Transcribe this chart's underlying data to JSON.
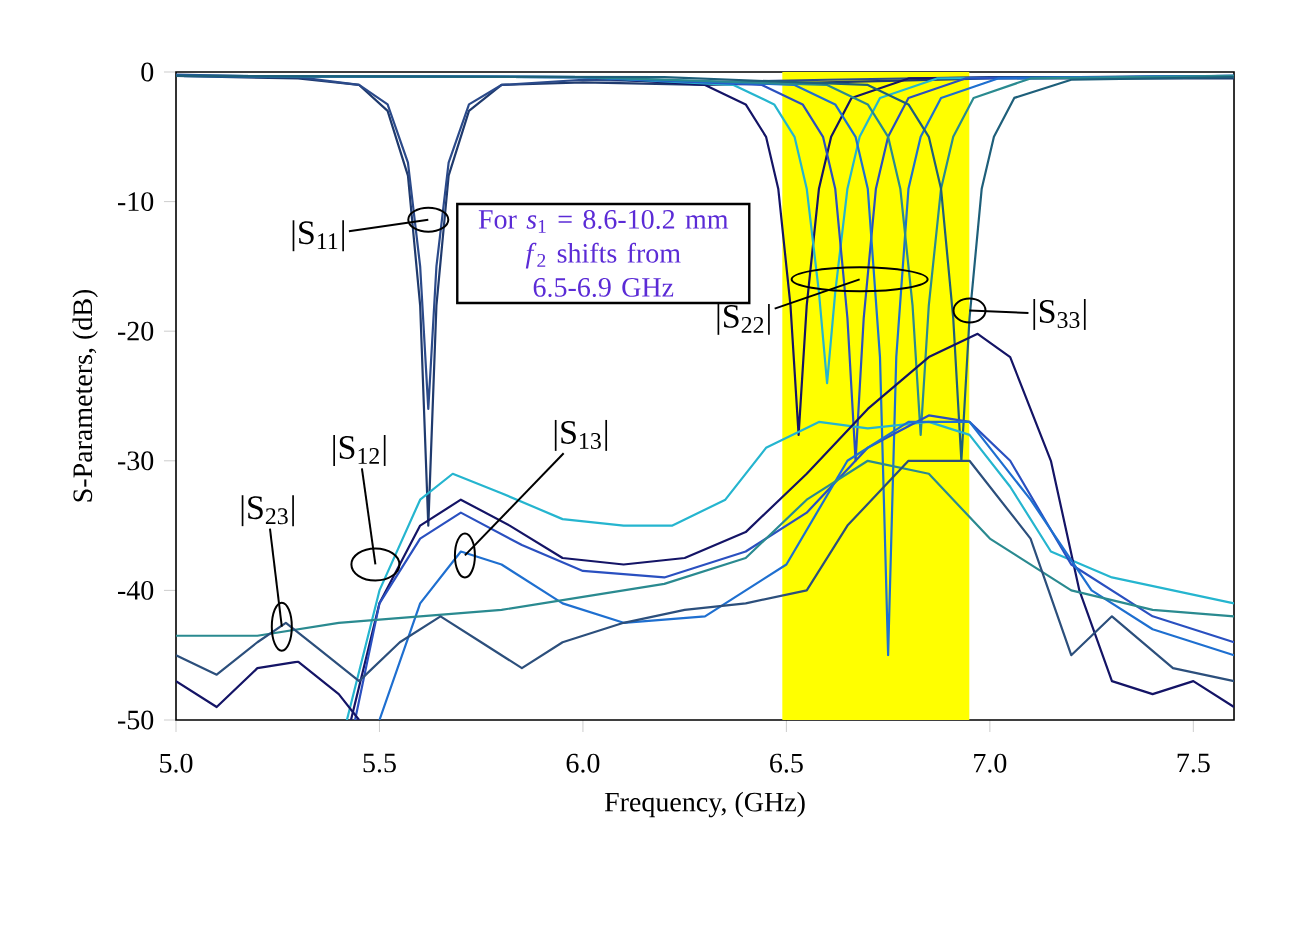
{
  "chart_data": {
    "type": "line",
    "xlabel": "Frequency, (GHz)",
    "ylabel": "S-Parameters, (dB)",
    "xlim": [
      5.0,
      7.6
    ],
    "ylim": [
      -50,
      0
    ],
    "xticks": [
      {
        "value": 5.0,
        "label": "5.0"
      },
      {
        "value": 5.5,
        "label": "5.5"
      },
      {
        "value": 6.0,
        "label": "6.0"
      },
      {
        "value": 6.5,
        "label": "6.5"
      },
      {
        "value": 7.0,
        "label": "7.0"
      },
      {
        "value": 7.5,
        "label": "7.5"
      }
    ],
    "yticks": [
      -50,
      -40,
      -30,
      -20,
      -10,
      0
    ],
    "line_style": "solid",
    "marker": "none",
    "bands": [
      {
        "axis": "x",
        "from": 6.49,
        "to": 6.95,
        "color": "#ffff00"
      }
    ],
    "series": [
      {
        "color": "#1f3a6e",
        "x": [
          5.0,
          5.3,
          5.45,
          5.52,
          5.57,
          5.6,
          5.62,
          5.64,
          5.67,
          5.72,
          5.8,
          6.0,
          6.3,
          6.6,
          7.0,
          7.6
        ],
        "values": [
          -0.3,
          -0.5,
          -1,
          -3,
          -8,
          -18,
          -35,
          -18,
          -8,
          -3,
          -1,
          -0.8,
          -1,
          -0.8,
          -0.5,
          -0.5
        ]
      },
      {
        "color": "#2b4a8a",
        "x": [
          5.0,
          5.3,
          5.45,
          5.52,
          5.57,
          5.6,
          5.62,
          5.64,
          5.67,
          5.72,
          5.8,
          6.0,
          6.3,
          6.6,
          7.0,
          7.6
        ],
        "values": [
          -0.2,
          -0.4,
          -1,
          -2.5,
          -7,
          -15,
          -26,
          -15,
          -7,
          -2.5,
          -1,
          -0.6,
          -0.8,
          -0.6,
          -0.4,
          -0.4
        ]
      },
      {
        "color": "#141466",
        "x": [
          5.0,
          6.0,
          6.3,
          6.4,
          6.45,
          6.48,
          6.51,
          6.53,
          6.55,
          6.58,
          6.61,
          6.66,
          6.8,
          7.6
        ],
        "values": [
          -0.3,
          -0.4,
          -1,
          -2.5,
          -5,
          -9,
          -18,
          -28,
          -18,
          -9,
          -5,
          -2,
          -0.5,
          -0.3
        ]
      },
      {
        "color": "#25b5cf",
        "x": [
          5.0,
          6.0,
          6.37,
          6.47,
          6.52,
          6.55,
          6.58,
          6.6,
          6.62,
          6.65,
          6.68,
          6.73,
          6.87,
          7.6
        ],
        "values": [
          -0.3,
          -0.4,
          -1,
          -2.5,
          -5,
          -9,
          -17,
          -24,
          -17,
          -9,
          -5,
          -2,
          -0.5,
          -0.3
        ]
      },
      {
        "color": "#2a50c0",
        "x": [
          5.0,
          6.0,
          6.44,
          6.54,
          6.59,
          6.62,
          6.65,
          6.67,
          6.69,
          6.72,
          6.75,
          6.8,
          6.94,
          7.6
        ],
        "values": [
          -0.3,
          -0.4,
          -1,
          -2.5,
          -5,
          -9,
          -19,
          -30,
          -19,
          -9,
          -5,
          -2,
          -0.5,
          -0.3
        ]
      },
      {
        "color": "#1e6fd0",
        "x": [
          5.0,
          6.0,
          6.52,
          6.62,
          6.67,
          6.7,
          6.73,
          6.75,
          6.77,
          6.8,
          6.83,
          6.88,
          7.02,
          7.6
        ],
        "values": [
          -0.3,
          -0.4,
          -1,
          -2.5,
          -5,
          -9,
          -22,
          -45,
          -22,
          -9,
          -5,
          -2,
          -0.5,
          -0.3
        ]
      },
      {
        "color": "#2a8a90",
        "x": [
          5.0,
          6.0,
          6.6,
          6.7,
          6.75,
          6.78,
          6.81,
          6.83,
          6.85,
          6.88,
          6.91,
          6.96,
          7.1,
          7.6
        ],
        "values": [
          -0.3,
          -0.4,
          -1,
          -2.5,
          -5,
          -9,
          -18,
          -28,
          -18,
          -9,
          -5,
          -2,
          -0.5,
          -0.3
        ]
      },
      {
        "color": "#1e5f7a",
        "x": [
          5.0,
          6.2,
          6.7,
          6.8,
          6.85,
          6.88,
          6.91,
          6.93,
          6.95,
          6.98,
          7.01,
          7.06,
          7.2,
          7.6
        ],
        "values": [
          -0.3,
          -0.4,
          -1,
          -2.5,
          -5,
          -9,
          -19,
          -30,
          -19,
          -9,
          -5,
          -2,
          -0.6,
          -0.4
        ]
      },
      {
        "color": "#25b5cf",
        "x": [
          5.42,
          5.5,
          5.6,
          5.68,
          5.8,
          5.95,
          6.1,
          6.22,
          6.35,
          6.45,
          6.58,
          6.7,
          6.85,
          6.95,
          7.05,
          7.15,
          7.3,
          7.45,
          7.6
        ],
        "values": [
          -50,
          -40,
          -33,
          -31,
          -32.5,
          -34.5,
          -35,
          -35,
          -33,
          -29,
          -27,
          -27.5,
          -27,
          -28,
          -32,
          -37,
          -39,
          -40,
          -41
        ]
      },
      {
        "color": "#141466",
        "x": [
          5.43,
          5.5,
          5.6,
          5.7,
          5.82,
          5.95,
          6.1,
          6.25,
          6.4,
          6.55,
          6.7,
          6.85,
          6.97,
          7.05,
          7.15,
          7.22,
          7.3,
          7.4,
          7.5,
          7.6
        ],
        "values": [
          -50,
          -41,
          -35,
          -33,
          -35,
          -37.5,
          -38,
          -37.5,
          -35.5,
          -31,
          -26,
          -22,
          -20.2,
          -22,
          -30,
          -40,
          -47,
          -48,
          -47,
          -49
        ]
      },
      {
        "color": "#2a50c0",
        "x": [
          5.44,
          5.5,
          5.6,
          5.7,
          5.85,
          6.0,
          6.2,
          6.4,
          6.55,
          6.7,
          6.85,
          6.95,
          7.05,
          7.2,
          7.4,
          7.6
        ],
        "values": [
          -50,
          -41,
          -36,
          -34,
          -36.5,
          -38.5,
          -39,
          -37,
          -34,
          -29,
          -26.5,
          -27,
          -30,
          -38,
          -42,
          -44
        ]
      },
      {
        "color": "#1e6fd0",
        "x": [
          5.5,
          5.6,
          5.7,
          5.8,
          5.95,
          6.1,
          6.3,
          6.5,
          6.65,
          6.8,
          6.95,
          7.1,
          7.25,
          7.4,
          7.6
        ],
        "values": [
          -50,
          -41,
          -37,
          -38,
          -41,
          -42.5,
          -42,
          -38,
          -30,
          -27,
          -27,
          -33,
          -40,
          -43,
          -45
        ]
      },
      {
        "color": "#2a8a90",
        "x": [
          5.0,
          5.2,
          5.4,
          5.6,
          5.8,
          6.0,
          6.2,
          6.4,
          6.55,
          6.7,
          6.85,
          7.0,
          7.2,
          7.4,
          7.6
        ],
        "values": [
          -43.5,
          -43.5,
          -42.5,
          -42,
          -41.5,
          -40.5,
          -39.5,
          -37.5,
          -33,
          -30,
          -31,
          -36,
          -40,
          -41.5,
          -42
        ]
      },
      {
        "color": "#2c4f7c",
        "x": [
          5.0,
          5.1,
          5.2,
          5.27,
          5.35,
          5.45,
          5.55,
          5.65,
          5.75,
          5.85,
          5.95,
          6.1,
          6.25,
          6.4,
          6.55,
          6.65,
          6.8,
          6.95,
          7.1,
          7.2,
          7.3,
          7.45,
          7.6
        ],
        "values": [
          -45,
          -46.5,
          -44,
          -42.5,
          -44.5,
          -47,
          -44,
          -42,
          -44,
          -46,
          -44,
          -42.5,
          -41.5,
          -41,
          -40,
          -35,
          -30,
          -30,
          -36,
          -45,
          -42,
          -46,
          -47
        ]
      },
      {
        "color": "#141466",
        "x": [
          5.0,
          5.1,
          5.2,
          5.3,
          5.4,
          5.45
        ],
        "values": [
          -47,
          -49,
          -46,
          -45.5,
          -48,
          -50
        ]
      }
    ],
    "annotations": [
      {
        "text": "|S$_{11}$|",
        "x": 5.62,
        "y": -11.4
      },
      {
        "text": "|S$_{22}$|",
        "x": 6.68,
        "y": -16
      },
      {
        "text": "|S$_{33}$|",
        "x": 6.95,
        "y": -18.4
      },
      {
        "text": "|S$_{12}$|",
        "x": 5.49,
        "y": -38
      },
      {
        "text": "|S$_{13}$|",
        "x": 5.71,
        "y": -37.3
      },
      {
        "text": "|S$_{23}$|",
        "x": 5.26,
        "y": -42.8
      },
      "For *s*$_{1}$ = 8.6-10.2 mm",
      "*f*$_{2}$ shifts from 6.5-6.9 GHz"
    ]
  }
}
